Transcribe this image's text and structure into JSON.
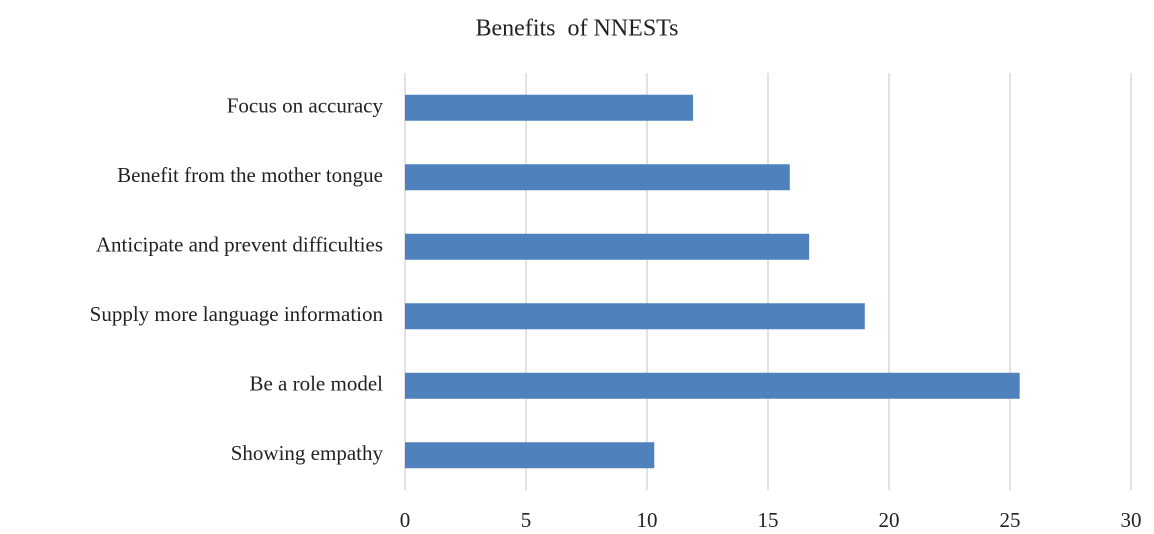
{
  "chart_data": {
    "type": "hbar",
    "title": "Benefits  of NNESTs",
    "categories": [
      "Focus on accuracy",
      "Benefit from the mother tongue",
      "Anticipate and prevent difficulties",
      "Supply more language information",
      "Be a role model",
      "Showing empathy"
    ],
    "values": [
      11.9,
      15.9,
      16.7,
      19.0,
      25.4,
      10.3
    ],
    "color": "#4f81bd",
    "xlim": [
      0,
      30
    ],
    "xticks": [
      0,
      5,
      10,
      15,
      20,
      25,
      30
    ],
    "grid": true
  }
}
